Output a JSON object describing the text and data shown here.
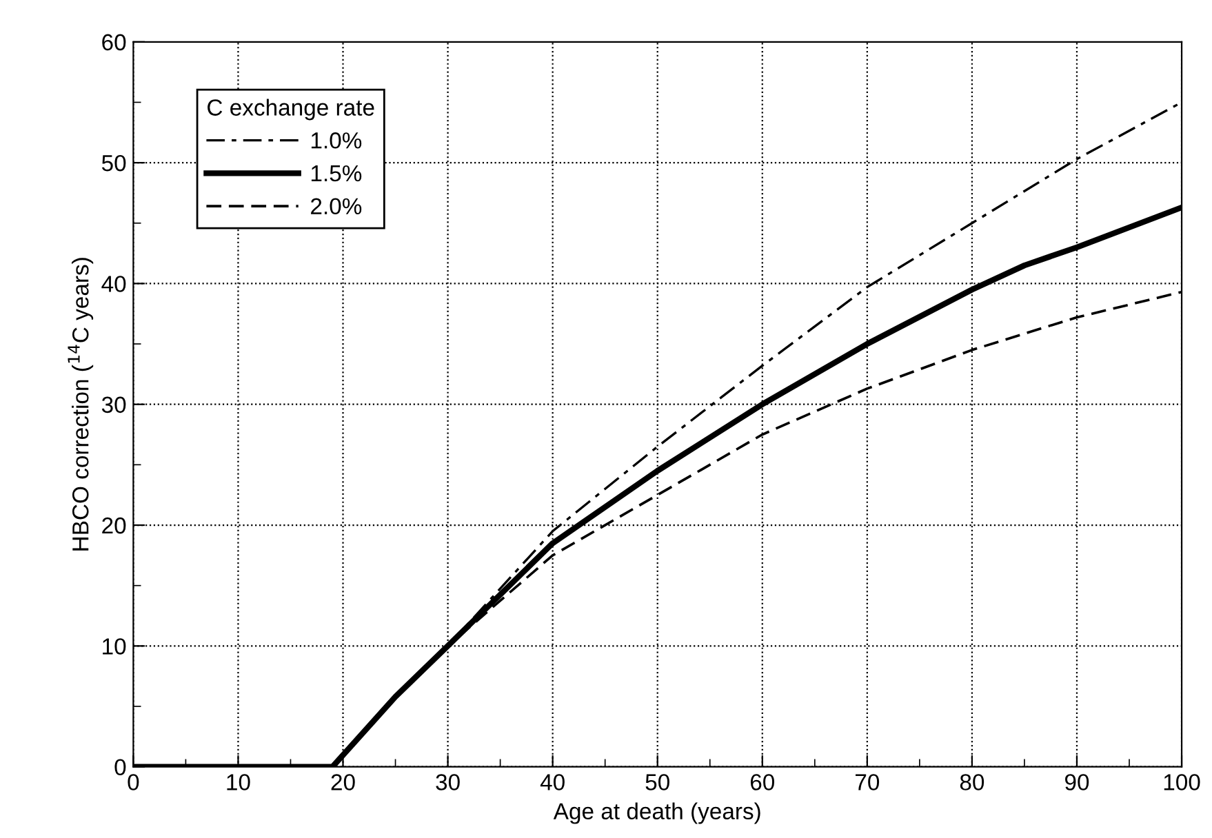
{
  "chart_data": {
    "type": "line",
    "xlabel": "Age at death (years)",
    "ylabel": "HBCO correction ($^{14}$C years)",
    "legend_title": "C exchange rate",
    "xlim": [
      0,
      100
    ],
    "ylim": [
      0,
      60
    ],
    "xticks": [
      0,
      {
        "value": 5,
        "label": null
      },
      10,
      {
        "value": 15,
        "label": null
      },
      20,
      {
        "value": 25,
        "label": null
      },
      30,
      {
        "value": 35,
        "label": null
      },
      40,
      {
        "value": 45,
        "label": null
      },
      50,
      {
        "value": 55,
        "label": null
      },
      60,
      {
        "value": 65,
        "label": null
      },
      70,
      {
        "value": 75,
        "label": null
      },
      80,
      {
        "value": 85,
        "label": null
      },
      90,
      {
        "value": 95,
        "label": null
      },
      100
    ],
    "yticks": [
      0,
      {
        "value": 5,
        "label": null
      },
      10,
      {
        "value": 15,
        "label": null
      },
      20,
      {
        "value": 25,
        "label": null
      },
      30,
      {
        "value": 35,
        "label": null
      },
      40,
      {
        "value": 45,
        "label": null
      },
      50,
      {
        "value": 55,
        "label": null
      },
      60
    ],
    "grid": true,
    "legend": "top left",
    "marker": "none",
    "series": [
      {
        "name": "1.0%",
        "color": "#000000",
        "line_style": "dashdot",
        "x": [
          0,
          19,
          25,
          30,
          40,
          50,
          60,
          70,
          80,
          90,
          100
        ],
        "values": [
          0,
          0,
          5.8,
          10,
          19.5,
          26.5,
          33.2,
          39.7,
          45,
          50.3,
          55
        ]
      },
      {
        "name": "1.5%",
        "color": "#000000",
        "line_style": "solid",
        "x": [
          0,
          19,
          25,
          30,
          40,
          50,
          60,
          70,
          80,
          85,
          90,
          100
        ],
        "values": [
          0,
          0,
          5.8,
          10,
          18.5,
          24.5,
          30,
          35,
          39.5,
          41.5,
          43,
          46.3
        ]
      },
      {
        "name": "2.0%",
        "color": "#000000",
        "line_style": "dashed",
        "x": [
          0,
          19,
          25,
          30,
          40,
          50,
          60,
          70,
          80,
          90,
          100
        ],
        "values": [
          0,
          0,
          5.8,
          10,
          17.5,
          22.5,
          27.5,
          31.3,
          34.5,
          37.2,
          39.3
        ]
      }
    ]
  }
}
